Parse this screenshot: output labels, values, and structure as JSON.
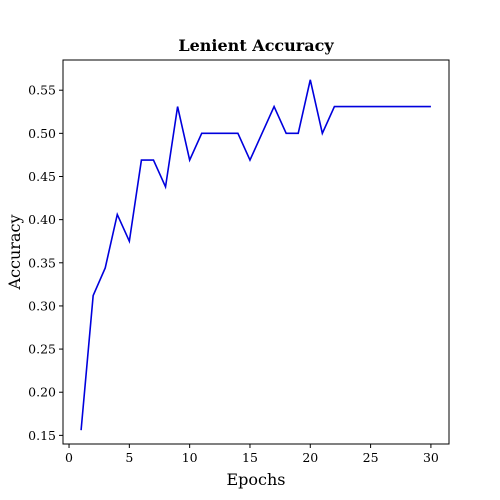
{
  "chart_data": {
    "type": "line",
    "title": "Lenient Accuracy",
    "xlabel": "Epochs",
    "ylabel": "Accuracy",
    "xlim": [
      -0.5,
      31.5
    ],
    "ylim": [
      0.14,
      0.585
    ],
    "xticks": [
      0,
      5,
      10,
      15,
      20,
      25,
      30
    ],
    "xtick_labels": [
      "0",
      "5",
      "10",
      "15",
      "20",
      "25",
      "30"
    ],
    "yticks": [
      0.15,
      0.2,
      0.25,
      0.3,
      0.35,
      0.4,
      0.45,
      0.5,
      0.55
    ],
    "ytick_labels": [
      "0.15",
      "0.20",
      "0.25",
      "0.30",
      "0.35",
      "0.40",
      "0.45",
      "0.50",
      "0.55"
    ],
    "grid": false,
    "series": [
      {
        "color": "#0000dd",
        "x": [
          1,
          2,
          3,
          4,
          5,
          6,
          7,
          8,
          9,
          10,
          11,
          12,
          13,
          14,
          15,
          16,
          17,
          18,
          19,
          20,
          21,
          22,
          23,
          24,
          25,
          26,
          27,
          28,
          29,
          30
        ],
        "values": [
          0.156,
          0.312,
          0.344,
          0.406,
          0.375,
          0.469,
          0.469,
          0.438,
          0.531,
          0.469,
          0.5,
          0.5,
          0.5,
          0.5,
          0.469,
          0.5,
          0.531,
          0.5,
          0.5,
          0.562,
          0.5,
          0.531,
          0.531,
          0.531,
          0.531,
          0.531,
          0.531,
          0.531,
          0.531,
          0.531
        ]
      }
    ]
  }
}
